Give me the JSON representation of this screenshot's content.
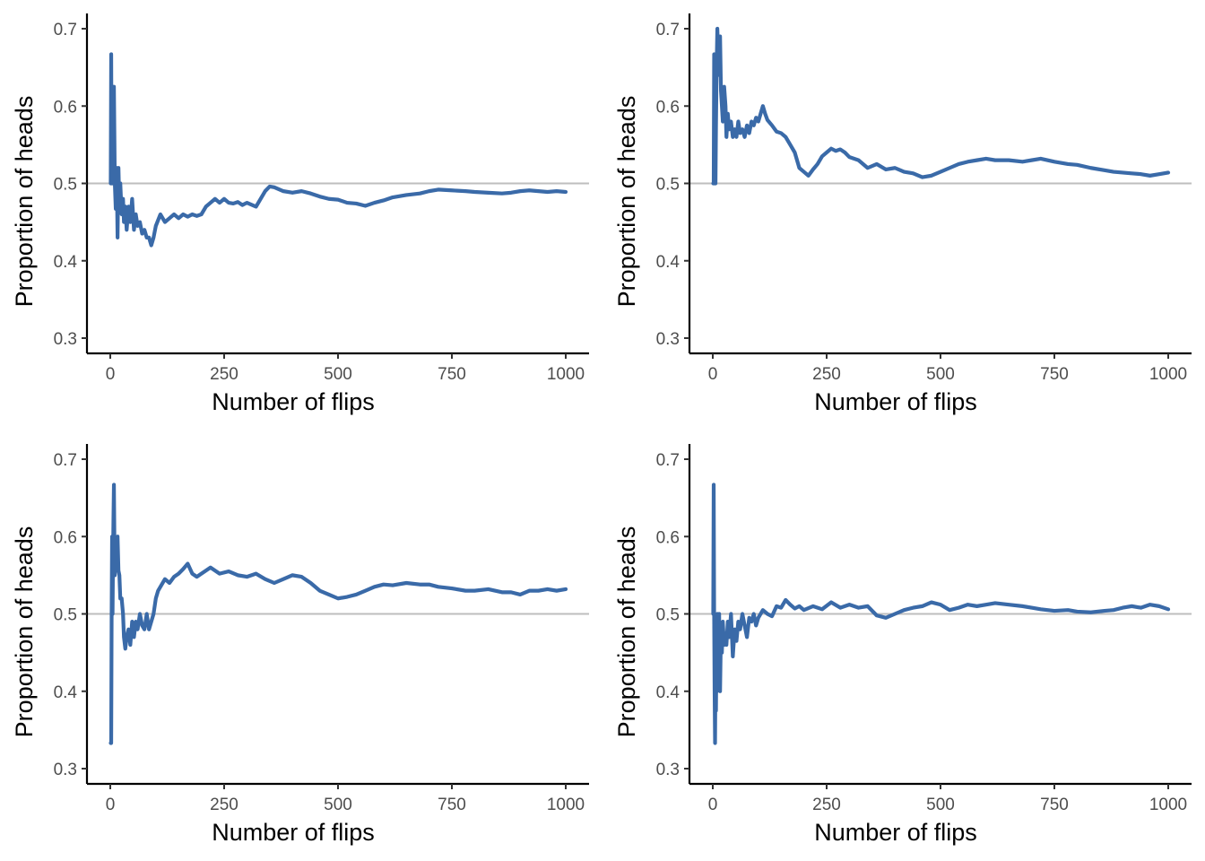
{
  "colors": {
    "series": "#3a6aa8",
    "reference": "#bebebe",
    "axis": "#000000"
  },
  "chart_data": [
    {
      "type": "line",
      "xlabel": "Number of flips",
      "ylabel": "Proportion of heads",
      "xlim": [
        0,
        1000
      ],
      "ylim": [
        0.3,
        0.7
      ],
      "xticks": [
        0,
        250,
        500,
        750,
        1000
      ],
      "yticks": [
        0.3,
        0.4,
        0.5,
        0.6,
        0.7
      ],
      "reference_line": 0.5,
      "grid": false,
      "series": [
        {
          "x": [
            1,
            2,
            3,
            4,
            5,
            6,
            8,
            10,
            12,
            14,
            16,
            18,
            20,
            22,
            25,
            28,
            30,
            33,
            36,
            40,
            44,
            48,
            52,
            56,
            60,
            65,
            70,
            75,
            80,
            85,
            90,
            95,
            100,
            110,
            120,
            130,
            140,
            150,
            160,
            170,
            180,
            190,
            200,
            210,
            220,
            230,
            240,
            250,
            260,
            270,
            280,
            290,
            300,
            320,
            340,
            350,
            360,
            380,
            400,
            420,
            440,
            460,
            480,
            500,
            520,
            540,
            560,
            580,
            600,
            620,
            650,
            680,
            700,
            720,
            750,
            780,
            800,
            830,
            860,
            880,
            900,
            920,
            940,
            960,
            980,
            1000
          ],
          "y": [
            0.5,
            0.667,
            0.5,
            0.6,
            0.5,
            0.5,
            0.625,
            0.5,
            0.467,
            0.52,
            0.43,
            0.52,
            0.47,
            0.5,
            0.46,
            0.48,
            0.45,
            0.47,
            0.44,
            0.47,
            0.45,
            0.48,
            0.44,
            0.46,
            0.445,
            0.45,
            0.435,
            0.44,
            0.43,
            0.43,
            0.42,
            0.43,
            0.445,
            0.46,
            0.45,
            0.455,
            0.46,
            0.455,
            0.46,
            0.457,
            0.46,
            0.458,
            0.46,
            0.47,
            0.475,
            0.48,
            0.475,
            0.48,
            0.475,
            0.474,
            0.476,
            0.472,
            0.475,
            0.47,
            0.49,
            0.496,
            0.495,
            0.49,
            0.488,
            0.49,
            0.487,
            0.483,
            0.48,
            0.479,
            0.475,
            0.474,
            0.471,
            0.475,
            0.478,
            0.482,
            0.485,
            0.487,
            0.49,
            0.492,
            0.491,
            0.49,
            0.489,
            0.488,
            0.487,
            0.488,
            0.49,
            0.491,
            0.49,
            0.489,
            0.49,
            0.489
          ]
        }
      ]
    },
    {
      "type": "line",
      "xlabel": "Number of flips",
      "ylabel": "Proportion of heads",
      "xlim": [
        0,
        1000
      ],
      "ylim": [
        0.3,
        0.7
      ],
      "xticks": [
        0,
        250,
        500,
        750,
        1000
      ],
      "yticks": [
        0.3,
        0.4,
        0.5,
        0.6,
        0.7
      ],
      "reference_line": 0.5,
      "grid": false,
      "series": [
        {
          "x": [
            1,
            2,
            3,
            4,
            5,
            6,
            7,
            8,
            9,
            10,
            12,
            14,
            16,
            18,
            20,
            22,
            25,
            28,
            30,
            33,
            36,
            40,
            44,
            48,
            52,
            56,
            60,
            65,
            70,
            75,
            80,
            85,
            90,
            95,
            100,
            105,
            110,
            115,
            120,
            130,
            140,
            150,
            160,
            170,
            180,
            190,
            200,
            210,
            220,
            230,
            240,
            250,
            260,
            270,
            280,
            290,
            300,
            320,
            340,
            360,
            380,
            400,
            420,
            440,
            460,
            480,
            500,
            520,
            540,
            560,
            580,
            600,
            620,
            650,
            680,
            700,
            720,
            750,
            780,
            800,
            830,
            860,
            880,
            900,
            920,
            940,
            960,
            980,
            1000
          ],
          "y": [
            0.5,
            0.5,
            0.667,
            0.5,
            0.6,
            0.5,
            0.571,
            0.625,
            0.667,
            0.7,
            0.667,
            0.64,
            0.69,
            0.62,
            0.6,
            0.58,
            0.625,
            0.6,
            0.56,
            0.59,
            0.57,
            0.58,
            0.56,
            0.57,
            0.56,
            0.58,
            0.565,
            0.57,
            0.56,
            0.575,
            0.565,
            0.58,
            0.575,
            0.585,
            0.58,
            0.59,
            0.6,
            0.59,
            0.582,
            0.575,
            0.567,
            0.565,
            0.56,
            0.55,
            0.54,
            0.52,
            0.515,
            0.51,
            0.518,
            0.525,
            0.535,
            0.54,
            0.545,
            0.542,
            0.544,
            0.54,
            0.534,
            0.53,
            0.52,
            0.525,
            0.518,
            0.52,
            0.515,
            0.513,
            0.508,
            0.51,
            0.515,
            0.52,
            0.525,
            0.528,
            0.53,
            0.532,
            0.53,
            0.53,
            0.528,
            0.53,
            0.532,
            0.528,
            0.525,
            0.524,
            0.52,
            0.517,
            0.515,
            0.514,
            0.513,
            0.512,
            0.51,
            0.512,
            0.514
          ]
        }
      ]
    },
    {
      "type": "line",
      "xlabel": "Number of flips",
      "ylabel": "Proportion of heads",
      "xlim": [
        0,
        1000
      ],
      "ylim": [
        0.3,
        0.7
      ],
      "xticks": [
        0,
        250,
        500,
        750,
        1000
      ],
      "yticks": [
        0.3,
        0.4,
        0.5,
        0.6,
        0.7
      ],
      "reference_line": 0.5,
      "grid": false,
      "series": [
        {
          "x": [
            1,
            2,
            3,
            4,
            5,
            6,
            7,
            8,
            9,
            10,
            12,
            14,
            16,
            18,
            20,
            22,
            25,
            28,
            30,
            33,
            36,
            40,
            44,
            48,
            52,
            56,
            60,
            65,
            70,
            75,
            80,
            85,
            90,
            95,
            100,
            105,
            110,
            120,
            130,
            140,
            150,
            160,
            170,
            180,
            190,
            200,
            220,
            240,
            260,
            280,
            300,
            320,
            340,
            360,
            380,
            400,
            420,
            440,
            460,
            480,
            500,
            520,
            540,
            560,
            580,
            600,
            620,
            650,
            680,
            700,
            720,
            750,
            780,
            800,
            830,
            860,
            880,
            900,
            920,
            940,
            960,
            980,
            1000
          ],
          "y": [
            0.333,
            0.333,
            0.5,
            0.6,
            0.5,
            0.571,
            0.625,
            0.667,
            0.6,
            0.55,
            0.583,
            0.571,
            0.6,
            0.556,
            0.55,
            0.52,
            0.52,
            0.5,
            0.47,
            0.455,
            0.47,
            0.48,
            0.46,
            0.49,
            0.47,
            0.49,
            0.48,
            0.5,
            0.485,
            0.48,
            0.5,
            0.48,
            0.49,
            0.5,
            0.52,
            0.53,
            0.535,
            0.545,
            0.54,
            0.548,
            0.552,
            0.558,
            0.565,
            0.552,
            0.548,
            0.552,
            0.56,
            0.552,
            0.555,
            0.55,
            0.548,
            0.552,
            0.545,
            0.54,
            0.545,
            0.55,
            0.548,
            0.54,
            0.53,
            0.525,
            0.52,
            0.522,
            0.525,
            0.53,
            0.535,
            0.538,
            0.537,
            0.54,
            0.538,
            0.538,
            0.535,
            0.533,
            0.53,
            0.53,
            0.532,
            0.528,
            0.528,
            0.525,
            0.53,
            0.53,
            0.532,
            0.53,
            0.532
          ]
        }
      ]
    },
    {
      "type": "line",
      "xlabel": "Number of flips",
      "ylabel": "Proportion of heads",
      "xlim": [
        0,
        1000
      ],
      "ylim": [
        0.3,
        0.7
      ],
      "xticks": [
        0,
        250,
        500,
        750,
        1000
      ],
      "yticks": [
        0.3,
        0.4,
        0.5,
        0.6,
        0.7
      ],
      "reference_line": 0.5,
      "grid": false,
      "series": [
        {
          "x": [
            1,
            2,
            3,
            4,
            5,
            6,
            7,
            8,
            9,
            10,
            12,
            14,
            16,
            18,
            20,
            22,
            25,
            28,
            30,
            33,
            36,
            40,
            44,
            48,
            52,
            56,
            60,
            65,
            70,
            75,
            80,
            85,
            90,
            95,
            100,
            110,
            120,
            130,
            140,
            150,
            160,
            170,
            180,
            190,
            200,
            220,
            240,
            260,
            280,
            300,
            320,
            340,
            360,
            380,
            400,
            420,
            440,
            460,
            480,
            500,
            520,
            540,
            560,
            580,
            600,
            620,
            650,
            680,
            700,
            720,
            750,
            780,
            800,
            830,
            860,
            880,
            900,
            920,
            940,
            960,
            980,
            1000
          ],
          "y": [
            0.5,
            0.667,
            0.5,
            0.4,
            0.333,
            0.429,
            0.375,
            0.444,
            0.4,
            0.5,
            0.42,
            0.5,
            0.4,
            0.48,
            0.45,
            0.49,
            0.46,
            0.475,
            0.46,
            0.49,
            0.47,
            0.5,
            0.445,
            0.48,
            0.465,
            0.49,
            0.48,
            0.5,
            0.485,
            0.47,
            0.495,
            0.49,
            0.5,
            0.485,
            0.495,
            0.505,
            0.5,
            0.497,
            0.51,
            0.508,
            0.518,
            0.512,
            0.507,
            0.51,
            0.505,
            0.51,
            0.506,
            0.515,
            0.508,
            0.512,
            0.508,
            0.51,
            0.498,
            0.495,
            0.5,
            0.505,
            0.508,
            0.51,
            0.515,
            0.512,
            0.505,
            0.508,
            0.512,
            0.51,
            0.512,
            0.514,
            0.512,
            0.51,
            0.508,
            0.506,
            0.504,
            0.505,
            0.503,
            0.502,
            0.504,
            0.505,
            0.508,
            0.51,
            0.508,
            0.512,
            0.51,
            0.506
          ]
        }
      ]
    }
  ]
}
